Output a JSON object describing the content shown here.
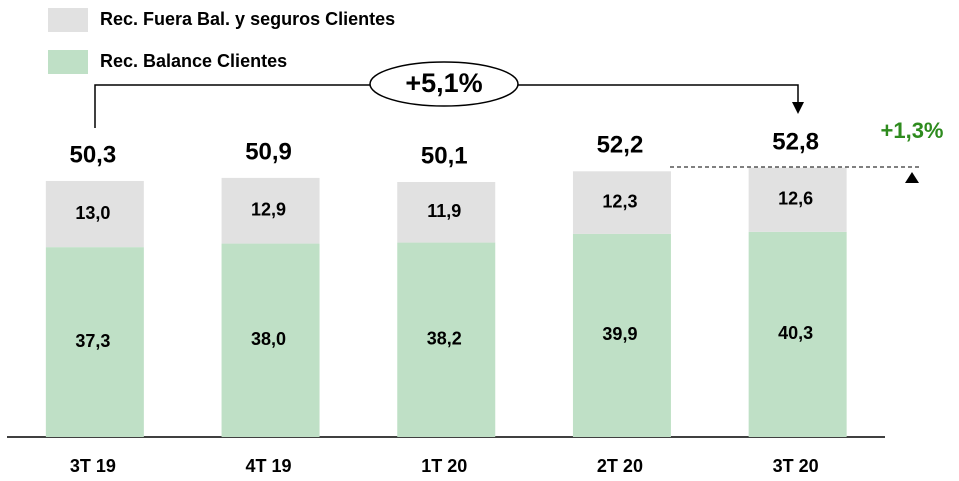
{
  "chart_data": {
    "type": "stacked_bar",
    "categories": [
      "3T 19",
      "4T 19",
      "1T 20",
      "2T 20",
      "3T 20"
    ],
    "series": [
      {
        "name": "Rec. Balance Clientes",
        "color": "#bfe0c6",
        "values": [
          37.3,
          38.0,
          38.2,
          39.9,
          40.3
        ],
        "value_labels": [
          "37,3",
          "38,0",
          "38,2",
          "39,9",
          "40,3"
        ]
      },
      {
        "name": "Rec. Fuera Bal. y seguros Clientes",
        "color": "#e1e1e1",
        "values": [
          13.0,
          12.9,
          11.9,
          12.3,
          12.6
        ],
        "value_labels": [
          "13,0",
          "12,9",
          "11,9",
          "12,3",
          "12,6"
        ]
      }
    ],
    "totals": {
      "values": [
        50.3,
        50.9,
        50.1,
        52.2,
        52.8
      ],
      "value_labels": [
        "50,3",
        "50,9",
        "50,1",
        "52,2",
        "52,8"
      ]
    },
    "annotations": [
      "+5,1%",
      "+1,3%"
    ],
    "annotation_color": "#2e8b1e"
  }
}
